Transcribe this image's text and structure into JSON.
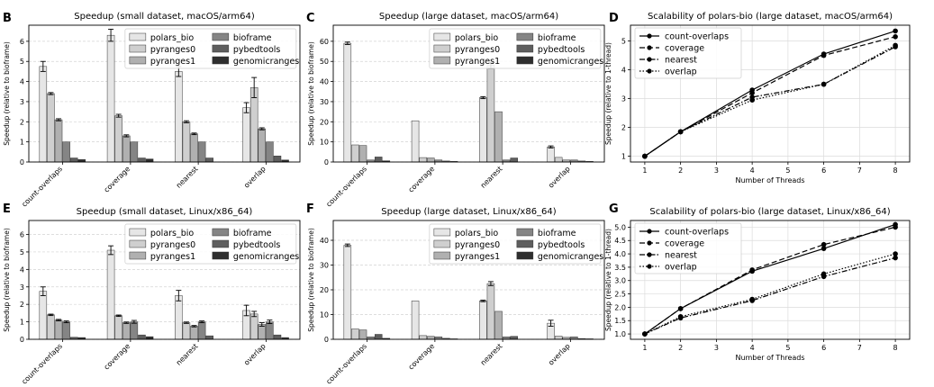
{
  "chart_data": [
    {
      "panel_label": "B",
      "type": "bar",
      "title": "Speedup (small dataset, macOS/arm64)",
      "ylabel": "Speedup (relative to bioframe)",
      "xlabel": "",
      "ylim": [
        0,
        6.8
      ],
      "yticks": [
        0,
        1,
        2,
        3,
        4,
        5,
        6
      ],
      "categories": [
        "count-overlaps",
        "coverage",
        "nearest",
        "overlap"
      ],
      "legend_position": "top-right",
      "grid": true,
      "series": [
        {
          "name": "polars_bio",
          "color": "#e6e6e6",
          "values": [
            4.75,
            6.3,
            4.5,
            2.7
          ],
          "errors": [
            0.25,
            0.3,
            0.25,
            0.25
          ]
        },
        {
          "name": "pyranges0",
          "color": "#cfcfcf",
          "values": [
            3.4,
            2.3,
            2.0,
            3.7
          ],
          "errors": [
            0.05,
            0.07,
            0.05,
            0.5
          ]
        },
        {
          "name": "pyranges1",
          "color": "#b0b0b0",
          "values": [
            2.1,
            1.3,
            1.4,
            1.65
          ],
          "errors": [
            0.05,
            0.05,
            0.04,
            0.05
          ]
        },
        {
          "name": "bioframe",
          "color": "#858585",
          "values": [
            1.0,
            1.0,
            1.0,
            1.0
          ],
          "errors": [
            0,
            0,
            0,
            0
          ]
        },
        {
          "name": "pybedtools",
          "color": "#5e5e5e",
          "values": [
            0.2,
            0.2,
            0.2,
            0.3
          ],
          "errors": [
            0,
            0,
            0,
            0
          ]
        },
        {
          "name": "genomicranges",
          "color": "#2e2e2e",
          "values": [
            0.12,
            0.15,
            0,
            0.1
          ],
          "errors": [
            0,
            0,
            0,
            0
          ]
        }
      ]
    },
    {
      "panel_label": "C",
      "type": "bar",
      "title": "Speedup (large dataset, macOS/arm64)",
      "ylabel": "Speedup (relative to bioframe)",
      "xlabel": "",
      "ylim": [
        0,
        68
      ],
      "yticks": [
        0,
        10,
        20,
        30,
        40,
        50,
        60
      ],
      "categories": [
        "count-overlaps",
        "coverage",
        "nearest",
        "overlap"
      ],
      "legend_position": "top-right",
      "grid": true,
      "series": [
        {
          "name": "polars_bio",
          "color": "#e6e6e6",
          "values": [
            59,
            20.5,
            32,
            7.5
          ],
          "errors": [
            0.6,
            0,
            0.5,
            0.5
          ]
        },
        {
          "name": "pyranges0",
          "color": "#cfcfcf",
          "values": [
            8.5,
            2.2,
            48,
            2.3
          ],
          "errors": [
            0,
            0,
            1.5,
            0
          ]
        },
        {
          "name": "pyranges1",
          "color": "#b0b0b0",
          "values": [
            8.2,
            2.0,
            25,
            1.0
          ],
          "errors": [
            0,
            0,
            0,
            0
          ]
        },
        {
          "name": "bioframe",
          "color": "#858585",
          "values": [
            1.0,
            1.0,
            1.0,
            1.0
          ],
          "errors": [
            0,
            0,
            0,
            0
          ]
        },
        {
          "name": "pybedtools",
          "color": "#5e5e5e",
          "values": [
            2.5,
            0.5,
            2.0,
            0.5
          ],
          "errors": [
            0,
            0,
            0,
            0
          ]
        },
        {
          "name": "genomicranges",
          "color": "#2e2e2e",
          "values": [
            0.6,
            0.3,
            0,
            0.3
          ],
          "errors": [
            0,
            0,
            0,
            0
          ]
        }
      ]
    },
    {
      "panel_label": "D",
      "type": "line",
      "title": "Scalability of polars-bio (large dataset, macOS/arm64)",
      "xlabel": "Number of Threads",
      "ylabel": "Speedup (relative to 1-thread)",
      "xlim": [
        0.6,
        8.4
      ],
      "xticks": [
        1,
        2,
        3,
        4,
        5,
        6,
        7,
        8
      ],
      "ylim": [
        0.8,
        5.55
      ],
      "yticks": [
        1,
        2,
        3,
        4,
        5
      ],
      "x": [
        1,
        2,
        4,
        6,
        8
      ],
      "legend_position": "top-left",
      "grid": true,
      "series": [
        {
          "name": "count-overlaps",
          "dash": "solid",
          "values": [
            1.0,
            1.85,
            3.3,
            4.55,
            5.35
          ]
        },
        {
          "name": "coverage",
          "dash": "dashed",
          "values": [
            1.0,
            1.85,
            3.2,
            4.5,
            5.15
          ]
        },
        {
          "name": "nearest",
          "dash": "dashdot",
          "values": [
            1.0,
            1.85,
            3.05,
            3.5,
            4.8
          ]
        },
        {
          "name": "overlap",
          "dash": "dotted",
          "values": [
            1.0,
            1.85,
            2.95,
            3.5,
            4.85
          ]
        }
      ]
    },
    {
      "panel_label": "E",
      "type": "bar",
      "title": "Speedup (small dataset, Linux/x86_64)",
      "ylabel": "Speedup (relative to bioframe)",
      "xlabel": "",
      "ylim": [
        0,
        6.8
      ],
      "yticks": [
        0,
        1,
        2,
        3,
        4,
        5,
        6
      ],
      "categories": [
        "count-overlaps",
        "coverage",
        "nearest",
        "overlap"
      ],
      "legend_position": "top-right",
      "grid": true,
      "series": [
        {
          "name": "polars_bio",
          "color": "#e6e6e6",
          "values": [
            2.75,
            5.1,
            2.5,
            1.65
          ],
          "errors": [
            0.25,
            0.25,
            0.3,
            0.3
          ]
        },
        {
          "name": "pyranges0",
          "color": "#cfcfcf",
          "values": [
            1.4,
            1.35,
            0.95,
            1.45
          ],
          "errors": [
            0.04,
            0.04,
            0.04,
            0.15
          ]
        },
        {
          "name": "pyranges1",
          "color": "#b0b0b0",
          "values": [
            1.1,
            0.95,
            0.75,
            0.85
          ],
          "errors": [
            0.04,
            0.04,
            0.04,
            0.1
          ]
        },
        {
          "name": "bioframe",
          "color": "#858585",
          "values": [
            1.0,
            1.0,
            1.0,
            1.0
          ],
          "errors": [
            0.05,
            0.08,
            0.05,
            0.1
          ]
        },
        {
          "name": "pybedtools",
          "color": "#5e5e5e",
          "values": [
            0.12,
            0.25,
            0.2,
            0.25
          ],
          "errors": [
            0,
            0,
            0,
            0
          ]
        },
        {
          "name": "genomicranges",
          "color": "#2e2e2e",
          "values": [
            0.1,
            0.15,
            0,
            0.1
          ],
          "errors": [
            0,
            0,
            0,
            0
          ]
        }
      ]
    },
    {
      "panel_label": "F",
      "type": "bar",
      "title": "Speedup (large dataset, Linux/x86_64)",
      "ylabel": "Speedup (relative to bioframe)",
      "xlabel": "",
      "ylim": [
        0,
        48
      ],
      "yticks": [
        0,
        10,
        20,
        30,
        40
      ],
      "categories": [
        "count-overlaps",
        "coverage",
        "nearest",
        "overlap"
      ],
      "legend_position": "top-right",
      "grid": true,
      "series": [
        {
          "name": "polars_bio",
          "color": "#e6e6e6",
          "values": [
            38,
            15.5,
            15.5,
            6.5
          ],
          "errors": [
            0.5,
            0,
            0.3,
            1.2
          ]
        },
        {
          "name": "pyranges0",
          "color": "#cfcfcf",
          "values": [
            4.2,
            1.5,
            22.5,
            1.3
          ],
          "errors": [
            0,
            0,
            0.8,
            0
          ]
        },
        {
          "name": "pyranges1",
          "color": "#b0b0b0",
          "values": [
            3.8,
            1.2,
            11.3,
            0.8
          ],
          "errors": [
            0,
            0,
            0,
            0
          ]
        },
        {
          "name": "bioframe",
          "color": "#858585",
          "values": [
            1.0,
            1.0,
            1.0,
            1.0
          ],
          "errors": [
            0,
            0,
            0,
            0
          ]
        },
        {
          "name": "pybedtools",
          "color": "#5e5e5e",
          "values": [
            2.0,
            0.4,
            1.2,
            0.3
          ],
          "errors": [
            0,
            0,
            0,
            0
          ]
        },
        {
          "name": "genomicranges",
          "color": "#2e2e2e",
          "values": [
            0.4,
            0.2,
            0,
            0.2
          ],
          "errors": [
            0,
            0,
            0,
            0
          ]
        }
      ]
    },
    {
      "panel_label": "G",
      "type": "line",
      "title": "Scalability of polars-bio (large dataset, Linux/x86_64)",
      "xlabel": "Number of Threads",
      "ylabel": "Speedup (relative to 1-thread)",
      "xlim": [
        0.6,
        8.4
      ],
      "xticks": [
        1,
        2,
        3,
        4,
        5,
        6,
        7,
        8
      ],
      "ylim": [
        0.8,
        5.25
      ],
      "yticks": [
        1.0,
        1.5,
        2.0,
        2.5,
        3.0,
        3.5,
        4.0,
        4.5,
        5.0
      ],
      "x": [
        1,
        2,
        4,
        6,
        8
      ],
      "legend_position": "top-left",
      "grid": true,
      "series": [
        {
          "name": "count-overlaps",
          "dash": "solid",
          "values": [
            1.0,
            1.95,
            3.35,
            4.2,
            5.1
          ]
        },
        {
          "name": "coverage",
          "dash": "dashed",
          "values": [
            1.0,
            1.95,
            3.4,
            4.35,
            5.0
          ]
        },
        {
          "name": "nearest",
          "dash": "dashdot",
          "values": [
            1.0,
            1.6,
            2.25,
            3.15,
            3.85
          ]
        },
        {
          "name": "overlap",
          "dash": "dotted",
          "values": [
            1.0,
            1.65,
            2.3,
            3.25,
            4.0
          ]
        }
      ]
    }
  ]
}
